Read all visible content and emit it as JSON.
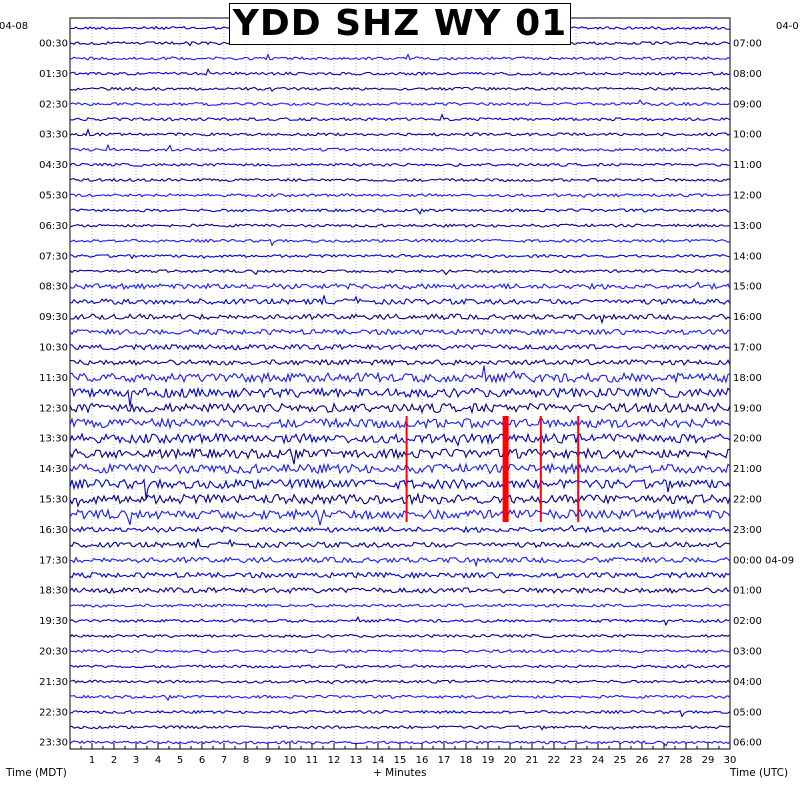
{
  "chart_data": {
    "type": "line",
    "title": "YDD SHZ WY 01",
    "date_left": "04-08",
    "date_right": "04-0",
    "left_axis_label": "Time (MDT)",
    "right_axis_label": "Time (UTC)",
    "x_axis_label": "+ Minutes",
    "xlim": [
      0,
      30
    ],
    "x_ticks": [
      "1",
      "2",
      "3",
      "4",
      "5",
      "6",
      "7",
      "8",
      "9",
      "10",
      "11",
      "12",
      "13",
      "14",
      "15",
      "16",
      "17",
      "18",
      "19",
      "20",
      "21",
      "22",
      "23",
      "24",
      "25",
      "26",
      "27",
      "28",
      "29",
      "30"
    ],
    "left_time_labels": [
      "00:30",
      "01:30",
      "02:30",
      "03:30",
      "04:30",
      "05:30",
      "06:30",
      "07:30",
      "08:30",
      "09:30",
      "10:30",
      "11:30",
      "12:30",
      "13:30",
      "14:30",
      "15:30",
      "16:30",
      "17:30",
      "18:30",
      "19:30",
      "20:30",
      "21:30",
      "22:30",
      "23:30"
    ],
    "right_time_labels": [
      "07:00",
      "08:00",
      "09:00",
      "10:00",
      "11:00",
      "12:00",
      "13:00",
      "14:00",
      "15:00",
      "16:00",
      "17:00",
      "18:00",
      "19:00",
      "20:00",
      "21:00",
      "22:00",
      "23:00",
      "00:00 04-09",
      "01:00",
      "02:00",
      "03:00",
      "04:00",
      "05:00",
      "06:00"
    ],
    "trace_count": 48,
    "trace_colors": [
      "#0000cc",
      "#00008b",
      "#1a1aff"
    ],
    "clip_color": "#ff0000",
    "grid": true,
    "clipped_events_minutes": [
      15.3,
      19.8,
      21.4,
      23.1
    ]
  }
}
